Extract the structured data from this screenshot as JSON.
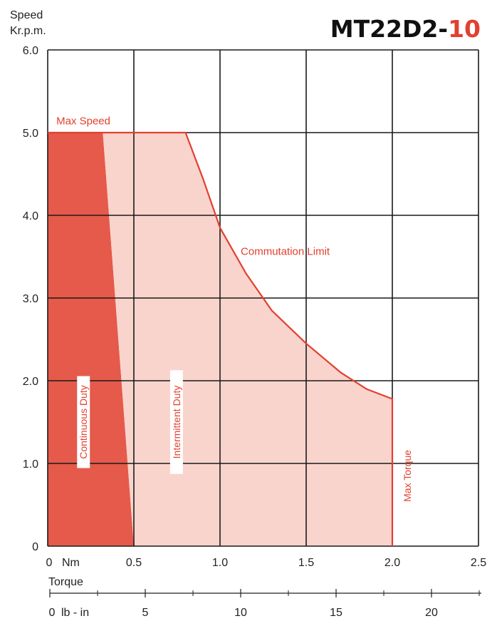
{
  "title": {
    "model": "MT22D2-",
    "suffix": "10",
    "model_color": "#111111",
    "suffix_color": "#e2402f"
  },
  "chart_data": {
    "type": "area",
    "ylabel_lines": [
      "Speed",
      "Kr.p.m."
    ],
    "xlabel": "Torque",
    "x_unit": "Nm",
    "secondary_x_unit": "lb - in",
    "xlim": [
      0,
      2.5
    ],
    "ylim": [
      0,
      6.0
    ],
    "grid": true,
    "x_ticks": [
      {
        "value": 0,
        "label": "0"
      },
      {
        "value": 0.5,
        "label": "0.5"
      },
      {
        "value": 1.0,
        "label": "1.0"
      },
      {
        "value": 1.5,
        "label": "1.5"
      },
      {
        "value": 2.0,
        "label": "2.0"
      },
      {
        "value": 2.5,
        "label": "2.5"
      }
    ],
    "y_ticks": [
      {
        "value": 0,
        "label": "0"
      },
      {
        "value": 1.0,
        "label": "1.0"
      },
      {
        "value": 2.0,
        "label": "2.0"
      },
      {
        "value": 3.0,
        "label": "3.0"
      },
      {
        "value": 4.0,
        "label": "4.0"
      },
      {
        "value": 5.0,
        "label": "5.0"
      },
      {
        "value": 6.0,
        "label": "6.0"
      }
    ],
    "secondary_x_ticks": [
      {
        "value": 0,
        "label": "0"
      },
      {
        "value": 5,
        "label": "5"
      },
      {
        "value": 10,
        "label": "10"
      },
      {
        "value": 15,
        "label": "15"
      },
      {
        "value": 20,
        "label": "20"
      }
    ],
    "secondary_x_minor": [
      2.5,
      7.5,
      12.5,
      17.5,
      22.5
    ],
    "series": [
      {
        "name": "Continuous Duty",
        "color": "#e55a4a",
        "points": [
          [
            0,
            0
          ],
          [
            0,
            5.0
          ],
          [
            0.32,
            5.0
          ],
          [
            0.5,
            0
          ]
        ]
      },
      {
        "name": "Intermittent Duty",
        "color": "#f9d4cd",
        "points": [
          [
            0.32,
            5.0
          ],
          [
            0.8,
            5.0
          ],
          [
            0.9,
            4.45
          ],
          [
            1.0,
            3.85
          ],
          [
            1.15,
            3.3
          ],
          [
            1.3,
            2.85
          ],
          [
            1.5,
            2.45
          ],
          [
            1.7,
            2.1
          ],
          [
            1.85,
            1.9
          ],
          [
            2.0,
            1.78
          ],
          [
            2.0,
            0
          ],
          [
            0.5,
            0
          ]
        ]
      }
    ],
    "boundary": {
      "color": "#e2402f",
      "points": [
        [
          0,
          5.0
        ],
        [
          0.8,
          5.0
        ],
        [
          0.9,
          4.45
        ],
        [
          1.0,
          3.85
        ],
        [
          1.15,
          3.3
        ],
        [
          1.3,
          2.85
        ],
        [
          1.5,
          2.45
        ],
        [
          1.7,
          2.1
        ],
        [
          1.85,
          1.9
        ],
        [
          2.0,
          1.78
        ],
        [
          2.0,
          0
        ]
      ]
    },
    "annotations": [
      {
        "text": "Max Speed",
        "x": 0.05,
        "y": 5.1,
        "rotate": false
      },
      {
        "text": "Commutation Limit",
        "x": 1.12,
        "y": 3.52,
        "rotate": false
      },
      {
        "text": "Max Torque",
        "x": 2.1,
        "y": 0.85,
        "rotate": true
      },
      {
        "text": "Continuous Duty",
        "x": 0.22,
        "y": 1.5,
        "rotate": true,
        "boxed": true
      },
      {
        "text": "Intermittent Duty",
        "x": 0.76,
        "y": 1.5,
        "rotate": true,
        "boxed": true
      }
    ]
  }
}
